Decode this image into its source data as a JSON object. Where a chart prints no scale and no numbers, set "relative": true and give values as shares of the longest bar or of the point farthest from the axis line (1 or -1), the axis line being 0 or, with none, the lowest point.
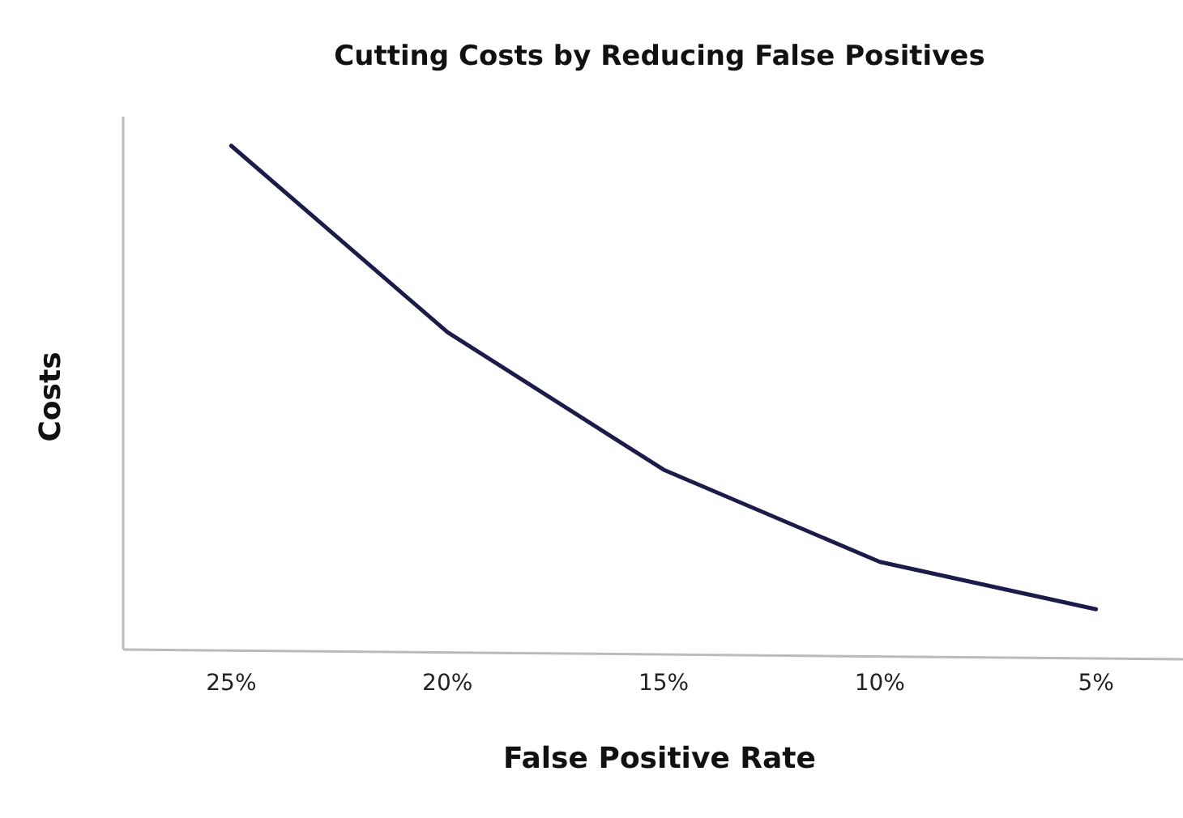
{
  "chart_data": {
    "type": "line",
    "title": "Cutting Costs by Reducing False Positives",
    "xlabel": "False Positive Rate",
    "ylabel": "Costs",
    "relative": true,
    "categories": [
      "25%",
      "20%",
      "15%",
      "10%",
      "5%"
    ],
    "series": [
      {
        "color": "#1c1c4a",
        "values": [
          1,
          0.63,
          0.357,
          0.174,
          0.08
        ]
      }
    ]
  }
}
